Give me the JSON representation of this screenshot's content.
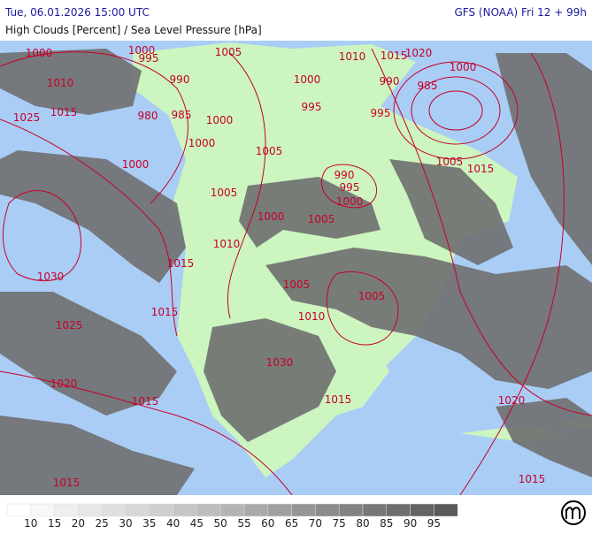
{
  "header": {
    "datetime": "Tue, 06.01.2026 15:00 UTC",
    "model": "GFS (NOAA) Fri 12 + 99h",
    "title": "High Clouds [Percent] / Sea Level Pressure [hPa]"
  },
  "isobar_labels": [
    "1000",
    "995",
    "1000",
    "1005",
    "1010",
    "1015",
    "1025",
    "990",
    "980",
    "985",
    "1000",
    "1000",
    "1005",
    "1000",
    "1005",
    "1000",
    "1005",
    "990",
    "995",
    "1000",
    "1010",
    "1015",
    "1030",
    "1015",
    "1025",
    "1005",
    "1005",
    "1010",
    "1030",
    "1020",
    "1015",
    "1015",
    "1020",
    "1015",
    "1015",
    "1010",
    "1000",
    "995",
    "1015",
    "1020",
    "1000",
    "990",
    "985",
    "995",
    "1005",
    "1015"
  ],
  "colorbar": {
    "ticks": [
      10,
      15,
      20,
      25,
      30,
      35,
      40,
      45,
      50,
      55,
      60,
      65,
      70,
      75,
      80,
      85,
      90,
      95
    ],
    "colors": [
      "#ffffff",
      "#f7f7f7",
      "#efefef",
      "#e7e7e7",
      "#dfdfdf",
      "#d7d7d7",
      "#cfcfcf",
      "#c6c6c6",
      "#bdbdbd",
      "#b4b4b4",
      "#aaaaaa",
      "#a0a0a0",
      "#969696",
      "#8c8c8c",
      "#828282",
      "#787878",
      "#6e6e6e",
      "#646464",
      "#5a5a5a"
    ]
  }
}
